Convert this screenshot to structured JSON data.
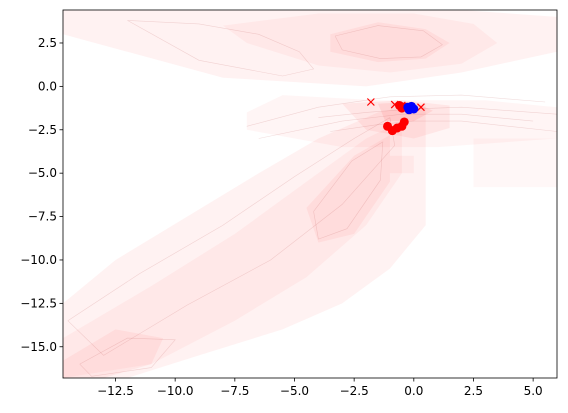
{
  "chart_data": {
    "type": "scatter",
    "title": "",
    "xlabel": "",
    "ylabel": "",
    "xlim": [
      -14.7,
      6.0
    ],
    "ylim": [
      -16.8,
      4.4
    ],
    "grid": false,
    "legend": "none",
    "xticks": [
      -12.5,
      -10.0,
      -7.5,
      -5.0,
      -2.5,
      0.0,
      2.5,
      5.0
    ],
    "xtick_labels": [
      "−12.5",
      "−10.0",
      "−7.5",
      "−5.0",
      "−2.5",
      "0.0",
      "2.5",
      "5.0"
    ],
    "yticks": [
      2.5,
      0.0,
      -2.5,
      -5.0,
      -7.5,
      -10.0,
      -12.5,
      -15.0
    ],
    "ytick_labels": [
      "2.5",
      "0.0",
      "−2.5",
      "−5.0",
      "−7.5",
      "−10.0",
      "−12.5",
      "−15.0"
    ],
    "background_density": {
      "kind": "filled-contour",
      "color": "#ff0000",
      "regions": [
        {
          "x": [
            -14.7,
            -14.7,
            -6.0,
            2.0,
            6.0,
            6.0,
            2.0,
            -2.0,
            -8.0,
            -14.7
          ],
          "y": [
            3.0,
            4.4,
            4.4,
            4.4,
            4.0,
            2.0,
            0.8,
            0.0,
            0.5,
            3.0
          ],
          "alpha": 0.05
        },
        {
          "x": [
            -8.0,
            -4.0,
            0.0,
            2.5,
            3.5,
            2.0,
            -1.0,
            -4.0,
            -7.0
          ],
          "y": [
            3.5,
            4.2,
            4.2,
            3.6,
            2.5,
            1.3,
            0.8,
            1.2,
            2.5
          ],
          "alpha": 0.04
        },
        {
          "x": [
            -3.5,
            -1.5,
            0.5,
            1.5,
            0.5,
            -1.5,
            -3.5
          ],
          "y": [
            3.0,
            3.7,
            3.3,
            2.5,
            1.6,
            1.4,
            2.0
          ],
          "alpha": 0.05
        },
        {
          "x": [
            -14.7,
            -12.5,
            -9.5,
            -6.5,
            -4.0,
            -1.5,
            0.5,
            0.5,
            -1.0,
            -3.0,
            -5.5,
            -9.0,
            -12.0,
            -14.7
          ],
          "y": [
            -12.5,
            -10.0,
            -7.5,
            -5.0,
            -3.0,
            -1.5,
            -1.0,
            -8.0,
            -10.5,
            -12.5,
            -14.0,
            -15.5,
            -16.8,
            -16.8
          ],
          "alpha": 0.05
        },
        {
          "x": [
            -14.7,
            -11.0,
            -7.5,
            -4.5,
            -2.0,
            -0.5,
            -0.5,
            -2.0,
            -4.5,
            -7.5,
            -11.0,
            -14.7
          ],
          "y": [
            -14.5,
            -11.5,
            -8.5,
            -5.5,
            -3.0,
            -2.0,
            -5.0,
            -8.0,
            -11.0,
            -13.5,
            -16.0,
            -16.8
          ],
          "alpha": 0.04
        },
        {
          "x": [
            -4.5,
            -2.5,
            -1.0,
            -1.0,
            -2.5,
            -4.0
          ],
          "y": [
            -7.0,
            -4.0,
            -2.8,
            -5.5,
            -8.5,
            -9.0
          ],
          "alpha": 0.05
        },
        {
          "x": [
            -14.7,
            -12.5,
            -10.5,
            -11.0,
            -13.0,
            -14.7
          ],
          "y": [
            -15.8,
            -14.0,
            -14.5,
            -16.0,
            -16.8,
            -16.8
          ],
          "alpha": 0.05
        },
        {
          "x": [
            -7.0,
            -5.5,
            -1.5,
            3.0,
            6.0,
            6.0,
            1.0,
            -3.0,
            -7.0
          ],
          "y": [
            -1.5,
            -0.5,
            -0.8,
            -0.8,
            -1.2,
            -3.0,
            -3.5,
            -3.5,
            -2.5
          ],
          "alpha": 0.04
        },
        {
          "x": [
            -3.0,
            -0.5,
            1.5,
            1.5,
            0.0,
            -2.0
          ],
          "y": [
            -1.0,
            -0.8,
            -1.1,
            -2.4,
            -3.0,
            -2.5
          ],
          "alpha": 0.06
        },
        {
          "x": [
            -1.5,
            0.0,
            0.8,
            0.0,
            -1.2
          ],
          "y": [
            -1.0,
            -0.9,
            -1.4,
            -2.0,
            -2.0
          ],
          "alpha": 0.08
        },
        {
          "x": [
            2.5,
            6.0,
            6.0,
            2.5
          ],
          "y": [
            -3.0,
            -3.0,
            -5.8,
            -5.8
          ],
          "alpha": 0.03
        },
        {
          "x": [
            -1.0,
            0.0,
            0.0,
            -1.0
          ],
          "y": [
            -4.0,
            -4.0,
            -5.0,
            -5.0
          ],
          "alpha": 0.04
        }
      ],
      "contour_lines": [
        {
          "x": [
            -14.0,
            -12.0,
            -10.0,
            -11.0,
            -13.5,
            -14.0
          ],
          "y": [
            -16.0,
            -14.5,
            -14.6,
            -16.2,
            -16.7,
            -16.0
          ]
        },
        {
          "x": [
            -4.2,
            -2.6,
            -1.3,
            -1.4,
            -2.8,
            -4.0,
            -4.2
          ],
          "y": [
            -7.2,
            -4.3,
            -3.2,
            -5.4,
            -8.2,
            -8.8,
            -7.2
          ]
        },
        {
          "x": [
            -3.3,
            -1.5,
            0.4,
            1.2,
            0.3,
            -1.4,
            -3.0,
            -3.3
          ],
          "y": [
            2.9,
            3.5,
            3.2,
            2.4,
            1.7,
            1.6,
            2.1,
            2.9
          ]
        },
        {
          "x": [
            -12.0,
            -9.0,
            -6.5,
            -4.8,
            -4.2,
            -5.5,
            -9.0,
            -12.0
          ],
          "y": [
            3.8,
            3.6,
            3.0,
            2.0,
            1.0,
            0.6,
            1.5,
            3.8
          ]
        },
        {
          "x": [
            -14.5,
            -11.5,
            -8.0,
            -5.0,
            -2.5,
            -1.0,
            -0.8,
            -3.0,
            -6.0,
            -9.5,
            -13.0,
            -14.5
          ],
          "y": [
            -13.5,
            -10.8,
            -8.0,
            -5.2,
            -3.0,
            -1.8,
            -3.4,
            -6.8,
            -10.0,
            -12.6,
            -15.5,
            -13.5
          ]
        },
        {
          "x": [
            -4.0,
            -2.0,
            0.0,
            2.0,
            4.0,
            6.0
          ],
          "y": [
            -1.8,
            -1.5,
            -1.3,
            -1.2,
            -1.4,
            -1.6
          ]
        },
        {
          "x": [
            -3.5,
            -1.5,
            0.0,
            2.0,
            4.0,
            6.0
          ],
          "y": [
            -2.6,
            -2.2,
            -2.0,
            -2.0,
            -2.3,
            -2.6
          ]
        },
        {
          "x": [
            -7.0,
            -4.0,
            -1.0,
            2.0,
            5.5
          ],
          "y": [
            -2.3,
            -1.2,
            -0.6,
            -0.5,
            -0.9
          ]
        },
        {
          "x": [
            -6.5,
            -3.0,
            -0.5,
            2.0,
            5.0
          ],
          "y": [
            -3.0,
            -2.0,
            -1.6,
            -1.6,
            -2.0
          ]
        }
      ]
    },
    "series": [
      {
        "marker": "x",
        "color": "#ff0000",
        "x": [
          -1.8,
          -0.8,
          -0.5,
          -0.3,
          0.3
        ],
        "y": [
          -0.9,
          -1.05,
          -1.1,
          -1.15,
          -1.2
        ]
      },
      {
        "marker": "circle",
        "color": "#ff0000",
        "x": [
          -1.1,
          -0.9,
          -0.7,
          -0.5,
          -0.4,
          -0.6,
          -0.5,
          -0.3,
          -0.2
        ],
        "y": [
          -2.3,
          -2.55,
          -2.4,
          -2.3,
          -2.05,
          -1.1,
          -1.25,
          -1.2,
          -1.3
        ]
      },
      {
        "marker": "circle",
        "color": "#0000ff",
        "x": [
          -0.25,
          -0.15,
          -0.05,
          -0.2,
          -0.1,
          0.0,
          -0.15
        ],
        "y": [
          -1.2,
          -1.3,
          -1.25,
          -1.35,
          -1.15,
          -1.3,
          -1.25
        ]
      }
    ]
  }
}
